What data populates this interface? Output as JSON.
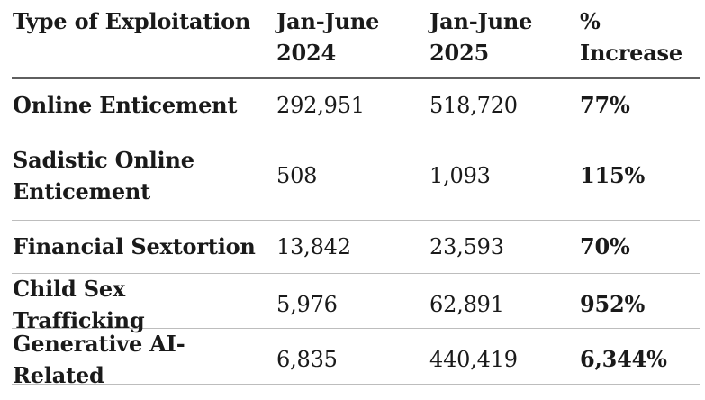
{
  "colors": {
    "background": "#ffffff",
    "text": "#1a1a1a",
    "header_rule": "#5f5f5f",
    "row_rule": "#bdbdbd"
  },
  "chart_data": {
    "type": "table",
    "title": "",
    "columns": [
      "Type of Exploitation",
      "Jan-June 2024",
      "Jan-June 2025",
      "% Increase"
    ],
    "header_lines": [
      [
        "Type of Exploitation",
        ""
      ],
      [
        "Jan-June",
        "2024"
      ],
      [
        "Jan-June",
        "2025"
      ],
      [
        "%",
        "Increase"
      ]
    ],
    "rows": [
      [
        "Online Enticement",
        "292,951",
        "518,720",
        "77%"
      ],
      [
        "Sadistic Online Enticement",
        "508",
        "1,093",
        "115%"
      ],
      [
        "Financial Sextortion",
        "13,842",
        "23,593",
        "70%"
      ],
      [
        "Child Sex Trafficking",
        "5,976",
        "62,891",
        "952%"
      ],
      [
        "Generative AI-Related",
        "6,835",
        "440,419",
        "6,344%"
      ]
    ],
    "layout": {
      "grid": "horizontal-rules-only",
      "bold_columns": [
        0,
        3
      ],
      "numeric_columns": [
        1,
        2
      ]
    }
  }
}
